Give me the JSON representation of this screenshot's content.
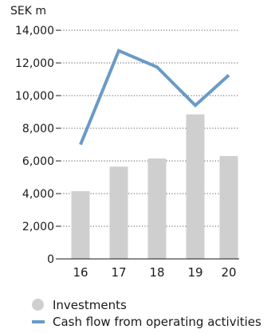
{
  "chart_data": {
    "type": "bar",
    "ylabel": "SEK m",
    "ylim": [
      0,
      14000
    ],
    "yticks": [
      0,
      2000,
      4000,
      6000,
      8000,
      10000,
      12000,
      14000
    ],
    "ytick_labels": [
      "0",
      "2,000",
      "4,000",
      "6,000",
      "8,000",
      "10,000",
      "12,000",
      "14,000"
    ],
    "categories": [
      "16",
      "17",
      "18",
      "19",
      "20"
    ],
    "grid": "dotted-horizontal",
    "legend_position": "bottom",
    "series": [
      {
        "name": "Investments",
        "kind": "bar",
        "color": "#cfcfcf",
        "values": [
          4150,
          5650,
          6150,
          8850,
          6300
        ]
      },
      {
        "name": "Cash flow from operating activities",
        "kind": "line",
        "color": "#6a9ac6",
        "values": [
          7000,
          12750,
          11750,
          9400,
          11250
        ]
      }
    ]
  }
}
